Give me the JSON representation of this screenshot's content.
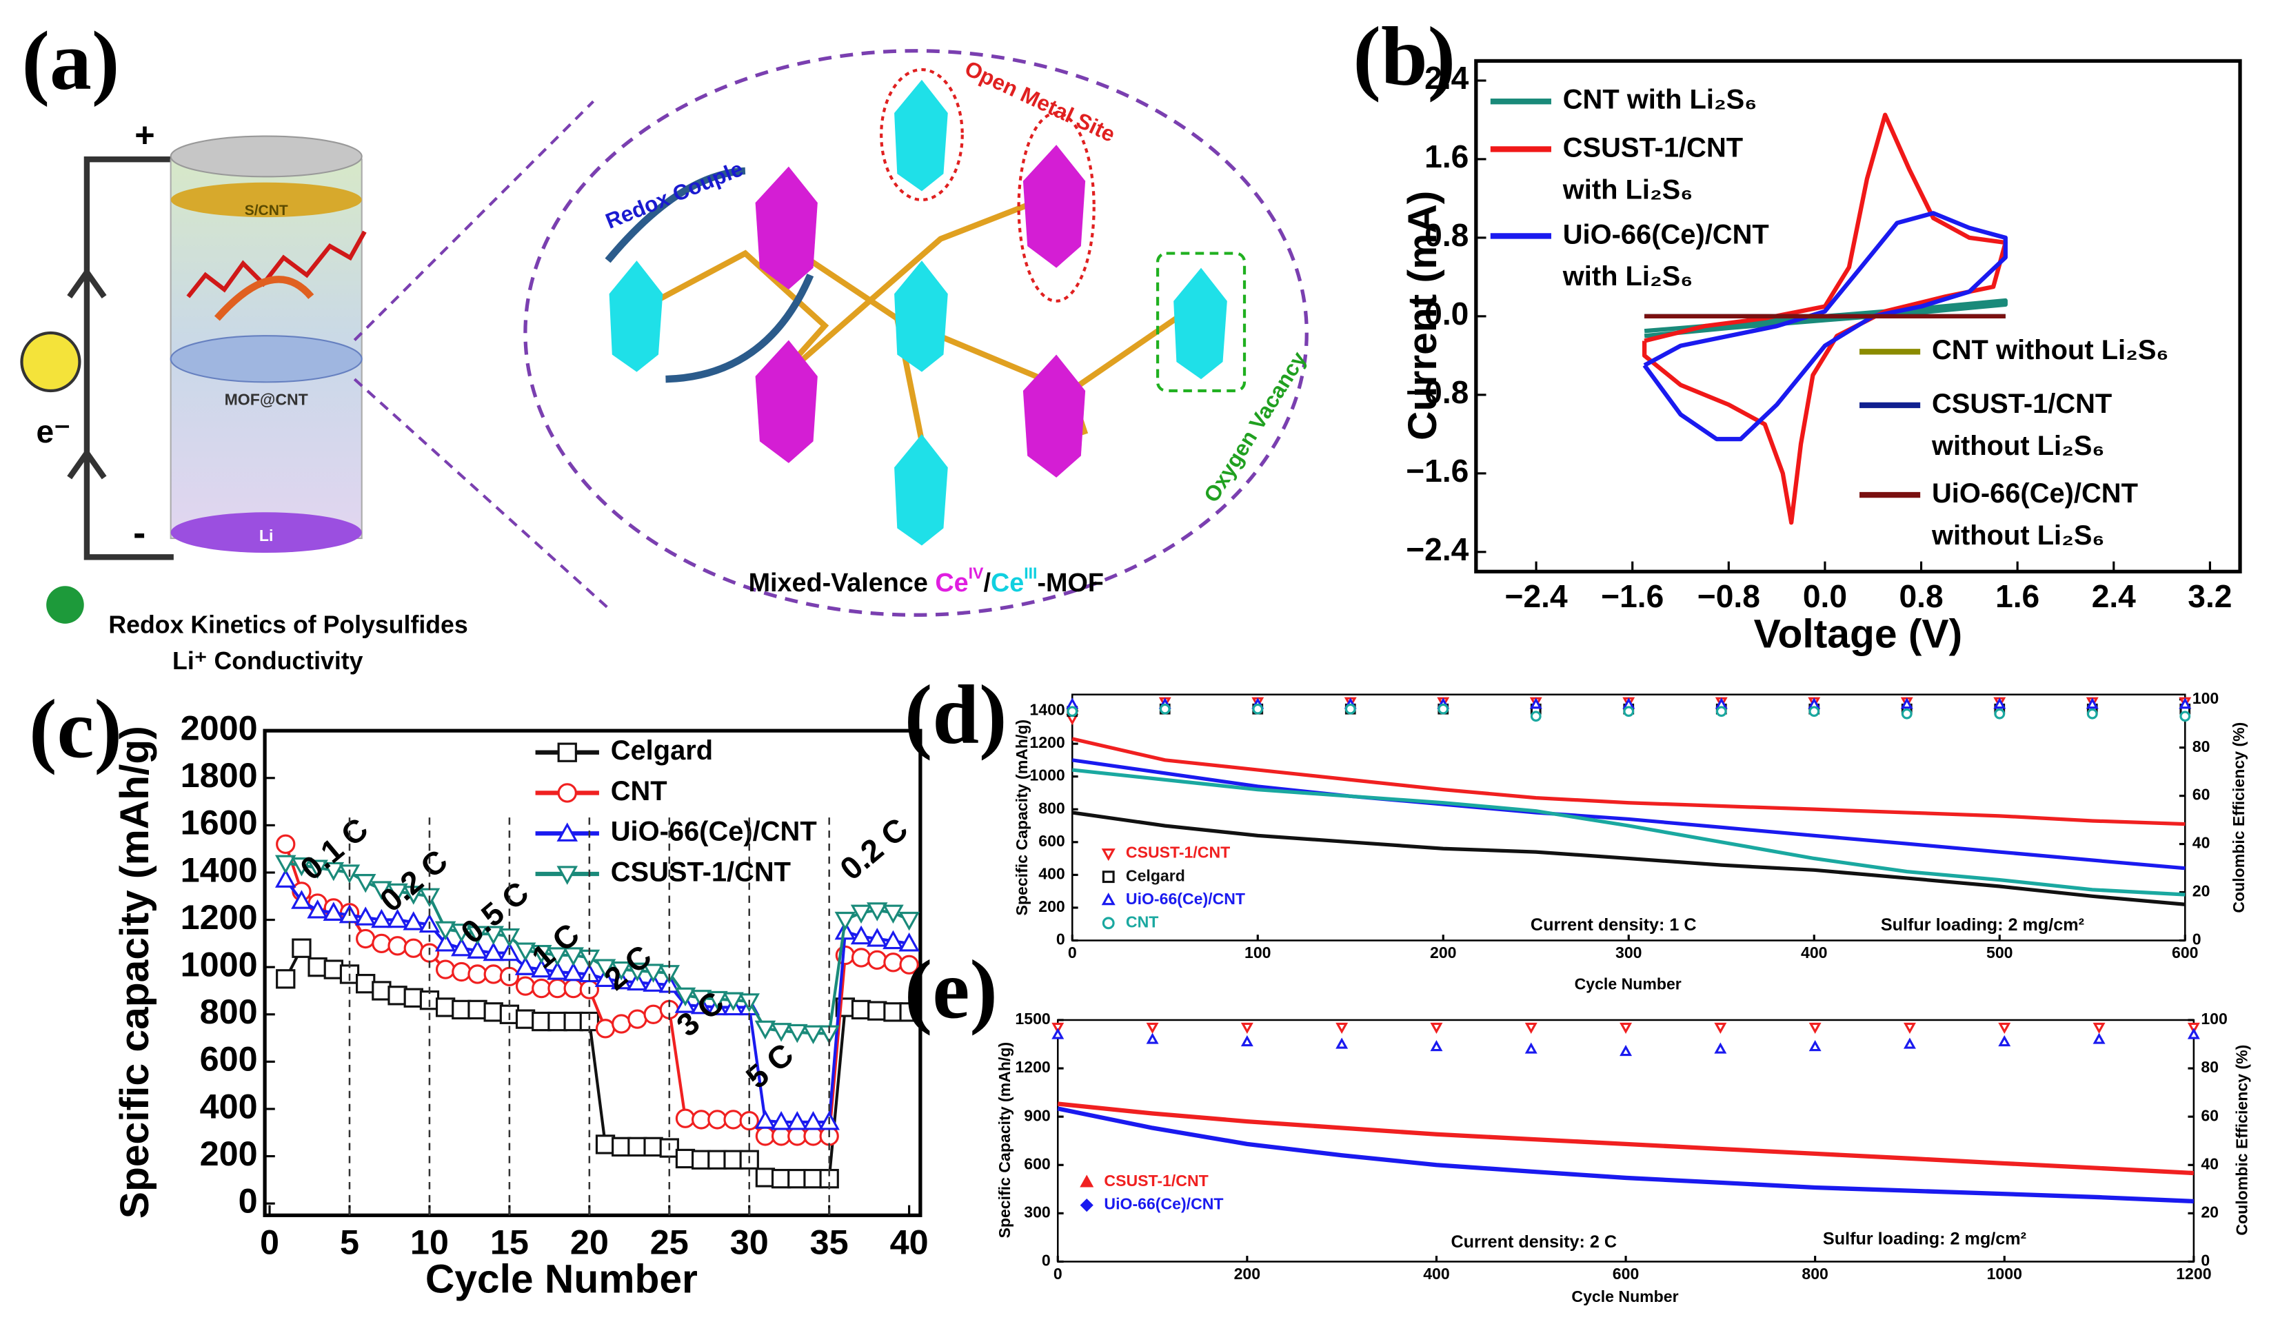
{
  "panel_a": {
    "label": "(a)",
    "plus": "+",
    "minus": "-",
    "electron": "e⁻",
    "cathode": "S/CNT",
    "separator": "MOF@CNT",
    "anode": "Li",
    "redox_couple": "Redox Couple",
    "open_metal_site": "Open Metal Site",
    "oxygen_vacancy": "Oxygen Vacancy",
    "mof_caption": [
      "Mixed-Valence ",
      "Ce",
      "IV",
      "/",
      "Ce",
      "III",
      "-MOF"
    ],
    "features": [
      "Redox Kinetics of Polysulfides",
      "Li⁺ Conductivity"
    ]
  },
  "chart_data": [
    {
      "type": "line",
      "label": "(b)",
      "xlabel": "Voltage (V)",
      "ylabel": "Current (mA)",
      "xlim": [
        -2.9,
        3.45
      ],
      "ylim": [
        -2.6,
        2.6
      ],
      "xticks": [
        {
          "value": -2.4,
          "label": "−2.4"
        },
        {
          "value": -1.6,
          "label": "−1.6"
        },
        {
          "value": -0.8,
          "label": "−0.8"
        },
        {
          "value": 0,
          "label": "0.0"
        },
        0.8,
        1.6,
        2.4,
        3.2
      ],
      "yticks": [
        {
          "value": -2.4,
          "label": "−2.4"
        },
        {
          "value": -1.6,
          "label": "−1.6"
        },
        {
          "value": -0.8,
          "label": "−0.8"
        },
        {
          "value": 0,
          "label": "0.0"
        },
        0.8,
        1.6,
        2.4
      ],
      "legend": "upper left",
      "series": [
        {
          "name": "CNT with Li₂S₆",
          "color": "#1a8a7a",
          "x": [
            -1.5,
            -0.8,
            0,
            0.8,
            1.5,
            1.5,
            0.8,
            0,
            -0.8,
            -1.5
          ],
          "values": [
            -0.15,
            -0.08,
            0,
            0.08,
            0.16,
            0.12,
            0.04,
            -0.04,
            -0.12,
            -0.2
          ]
        },
        {
          "name": "CSUST-1/CNT with Li₂S₆",
          "color": "#f01818",
          "x": [
            -1.5,
            -1.0,
            -0.5,
            0,
            0.2,
            0.35,
            0.5,
            0.7,
            0.9,
            1.2,
            1.5,
            1.4,
            1.0,
            0.5,
            0.1,
            -0.1,
            -0.2,
            -0.28,
            -0.35,
            -0.5,
            -0.8,
            -1.2,
            -1.5,
            -1.5
          ],
          "values": [
            -0.25,
            -0.1,
            -0.02,
            0.1,
            0.5,
            1.4,
            2.05,
            1.5,
            1.0,
            0.8,
            0.75,
            0.3,
            0.2,
            0.05,
            -0.2,
            -0.6,
            -1.3,
            -2.1,
            -1.6,
            -1.1,
            -0.9,
            -0.7,
            -0.4,
            -0.25
          ]
        },
        {
          "name": "UiO-66(Ce)/CNT with Li₂S₆",
          "color": "#1a1aef",
          "x": [
            -1.5,
            -1.2,
            -0.8,
            -0.4,
            0,
            0.3,
            0.6,
            0.9,
            1.2,
            1.5,
            1.5,
            1.2,
            0.8,
            0.4,
            0,
            -0.4,
            -0.7,
            -0.9,
            -1.2,
            -1.5
          ],
          "values": [
            -0.5,
            -0.3,
            -0.2,
            -0.1,
            0.05,
            0.5,
            0.95,
            1.05,
            0.9,
            0.8,
            0.6,
            0.25,
            0.1,
            0,
            -0.3,
            -0.9,
            -1.25,
            -1.25,
            -1.0,
            -0.5
          ]
        },
        {
          "name": "CNT without Li₂S₆",
          "color": "#8b8b00",
          "x": [
            -1.5,
            1.5
          ],
          "values": [
            0,
            0
          ]
        },
        {
          "name": "CSUST-1/CNT without Li₂S₆",
          "color": "#102090",
          "x": [
            -1.5,
            1.5
          ],
          "values": [
            0,
            0
          ]
        },
        {
          "name": "UiO-66(Ce)/CNT without Li₂S₆",
          "color": "#7a1010",
          "x": [
            -1.5,
            1.5
          ],
          "values": [
            0,
            0
          ]
        }
      ]
    },
    {
      "type": "line",
      "label": "(c)",
      "xlabel": "Cycle Number",
      "ylabel": "Specific capacity (mAh/g)",
      "xlim": [
        -0.3,
        40.7
      ],
      "ylim": [
        -50,
        2000
      ],
      "xticks": [
        0,
        5,
        10,
        15,
        20,
        25,
        30,
        35,
        40
      ],
      "yticks": [
        0,
        200,
        400,
        600,
        800,
        1000,
        1200,
        1400,
        1600,
        1800,
        2000
      ],
      "legend": "upper right",
      "markers": true,
      "annotations": [
        "0.1 C",
        "0.2 C",
        "0.5 C",
        "1 C",
        "2 C",
        "3 C",
        "5 C",
        "0.2 C"
      ],
      "x": [
        1,
        2,
        3,
        4,
        5,
        6,
        7,
        8,
        9,
        10,
        11,
        12,
        13,
        14,
        15,
        16,
        17,
        18,
        19,
        20,
        21,
        22,
        23,
        24,
        25,
        26,
        27,
        28,
        29,
        30,
        31,
        32,
        33,
        34,
        35,
        36,
        37,
        38,
        39,
        40
      ],
      "series": [
        {
          "name": "Celgard",
          "color": "#111111",
          "marker": "square",
          "values": [
            950,
            1080,
            1000,
            990,
            970,
            930,
            900,
            880,
            870,
            860,
            830,
            820,
            820,
            810,
            800,
            780,
            770,
            770,
            770,
            770,
            250,
            240,
            240,
            240,
            235,
            190,
            185,
            185,
            185,
            185,
            110,
            105,
            105,
            105,
            105,
            830,
            820,
            815,
            810,
            810
          ]
        },
        {
          "name": "CNT",
          "color": "#f02020",
          "marker": "circle",
          "values": [
            1520,
            1320,
            1270,
            1250,
            1230,
            1120,
            1100,
            1090,
            1080,
            1060,
            990,
            980,
            970,
            970,
            960,
            920,
            910,
            910,
            910,
            905,
            740,
            760,
            780,
            800,
            820,
            360,
            355,
            355,
            355,
            350,
            285,
            285,
            285,
            285,
            285,
            1050,
            1040,
            1030,
            1020,
            1010
          ]
        },
        {
          "name": "UiO-66(Ce)/CNT",
          "color": "#1a1aef",
          "marker": "triangle",
          "values": [
            1370,
            1280,
            1240,
            1230,
            1220,
            1210,
            1200,
            1200,
            1190,
            1180,
            1100,
            1080,
            1070,
            1060,
            1060,
            1000,
            990,
            980,
            975,
            970,
            950,
            940,
            935,
            930,
            925,
            840,
            835,
            830,
            830,
            830,
            350,
            345,
            345,
            345,
            345,
            1150,
            1130,
            1120,
            1110,
            1100
          ]
        },
        {
          "name": "CSUST-1/CNT",
          "color": "#1a8a7a",
          "marker": "triangle-down",
          "values": [
            1440,
            1430,
            1420,
            1410,
            1400,
            1360,
            1330,
            1320,
            1310,
            1300,
            1160,
            1150,
            1140,
            1140,
            1130,
            1070,
            1060,
            1050,
            1050,
            1040,
            1000,
            990,
            985,
            980,
            975,
            880,
            870,
            865,
            860,
            855,
            740,
            730,
            725,
            720,
            720,
            1200,
            1230,
            1240,
            1230,
            1200
          ]
        }
      ]
    },
    {
      "type": "line",
      "label": "(d)",
      "xlabel": "Cycle Number",
      "ylabel": "Specific Capacity (mAh/g)",
      "y2label": "Coulombic Efficiency (%)",
      "xlim": [
        0,
        600
      ],
      "ylim": [
        0,
        1500
      ],
      "y2lim": [
        0,
        102
      ],
      "xticks": [
        0,
        100,
        200,
        300,
        400,
        500,
        600
      ],
      "yticks": [
        0,
        200,
        400,
        600,
        800,
        1000,
        1200,
        1400
      ],
      "y2ticks": [
        0,
        20,
        40,
        60,
        80,
        100
      ],
      "legend": "lower left",
      "annotations": [
        "Current density: 1 C",
        "Sulfur loading: 2 mg/cm²"
      ],
      "x": [
        0,
        50,
        100,
        150,
        200,
        250,
        300,
        350,
        400,
        450,
        500,
        550,
        600
      ],
      "series": [
        {
          "name": "CSUST-1/CNT",
          "color": "#f02020",
          "marker": "triangle-down",
          "values": [
            1230,
            1100,
            1040,
            980,
            920,
            870,
            840,
            820,
            800,
            780,
            760,
            730,
            710
          ]
        },
        {
          "name": "Celgard",
          "color": "#111111",
          "marker": "square",
          "values": [
            780,
            700,
            640,
            600,
            560,
            540,
            500,
            460,
            430,
            380,
            330,
            270,
            220
          ]
        },
        {
          "name": "UiO-66(Ce)/CNT",
          "color": "#1a1aef",
          "marker": "triangle",
          "values": [
            1100,
            1020,
            940,
            880,
            830,
            780,
            740,
            690,
            640,
            590,
            540,
            490,
            440
          ]
        },
        {
          "name": "CNT",
          "color": "#1aa8a0",
          "marker": "circle",
          "values": [
            1040,
            980,
            920,
            880,
            840,
            790,
            700,
            600,
            500,
            420,
            370,
            310,
            280
          ]
        },
        {
          "axis": "y2",
          "color": "#f02020",
          "marker": "triangle-down",
          "values": [
            92,
            99,
            99,
            99,
            99,
            99,
            99,
            99,
            99,
            99,
            99,
            99,
            99
          ]
        },
        {
          "axis": "y2",
          "color": "#111111",
          "marker": "square",
          "values": [
            95,
            96,
            96,
            96,
            96,
            96,
            96,
            96,
            96,
            96,
            96,
            96,
            96
          ]
        },
        {
          "axis": "y2",
          "color": "#1a1aef",
          "marker": "triangle",
          "values": [
            98,
            98,
            98,
            98,
            98,
            98,
            98,
            98,
            98,
            98,
            98,
            98,
            98
          ]
        },
        {
          "axis": "y2",
          "color": "#1aa8a0",
          "marker": "circle",
          "values": [
            95,
            96,
            96,
            96,
            96,
            93,
            95,
            95,
            95,
            94,
            94,
            94,
            93
          ]
        }
      ]
    },
    {
      "type": "line",
      "label": "(e)",
      "xlabel": "Cycle Number",
      "ylabel": "Specific Capacity (mAh/g)",
      "y2label": "Coulombic Efficiency (%)",
      "xlim": [
        0,
        1200
      ],
      "ylim": [
        0,
        1500
      ],
      "y2lim": [
        0,
        100
      ],
      "xticks": [
        0,
        200,
        400,
        600,
        800,
        1000,
        1200
      ],
      "yticks": [
        0,
        300,
        600,
        900,
        1200,
        1500
      ],
      "y2ticks": [
        0,
        20,
        40,
        60,
        80,
        100
      ],
      "legend": "lower left",
      "annotations": [
        "Current density: 2 C",
        "Sulfur loading: 2 mg/cm²"
      ],
      "x": [
        0,
        100,
        200,
        300,
        400,
        500,
        600,
        700,
        800,
        900,
        1000,
        1100,
        1200
      ],
      "series": [
        {
          "name": "CSUST-1/CNT",
          "color": "#f02020",
          "marker": "triangle-filled",
          "values": [
            980,
            920,
            870,
            830,
            790,
            760,
            730,
            700,
            670,
            640,
            610,
            580,
            550
          ]
        },
        {
          "name": "UiO-66(Ce)/CNT",
          "color": "#1a1aef",
          "marker": "diamond",
          "values": [
            950,
            830,
            730,
            660,
            600,
            560,
            520,
            490,
            460,
            440,
            420,
            400,
            375
          ]
        },
        {
          "axis": "y2",
          "color": "#f02020",
          "marker": "triangle-down",
          "values": [
            97,
            97,
            97,
            97,
            97,
            97,
            97,
            97,
            97,
            97,
            97,
            97,
            97
          ]
        },
        {
          "axis": "y2",
          "color": "#1a1aef",
          "marker": "triangle",
          "values": [
            94,
            92,
            91,
            90,
            89,
            88,
            87,
            88,
            89,
            90,
            91,
            92,
            94
          ]
        }
      ]
    }
  ]
}
